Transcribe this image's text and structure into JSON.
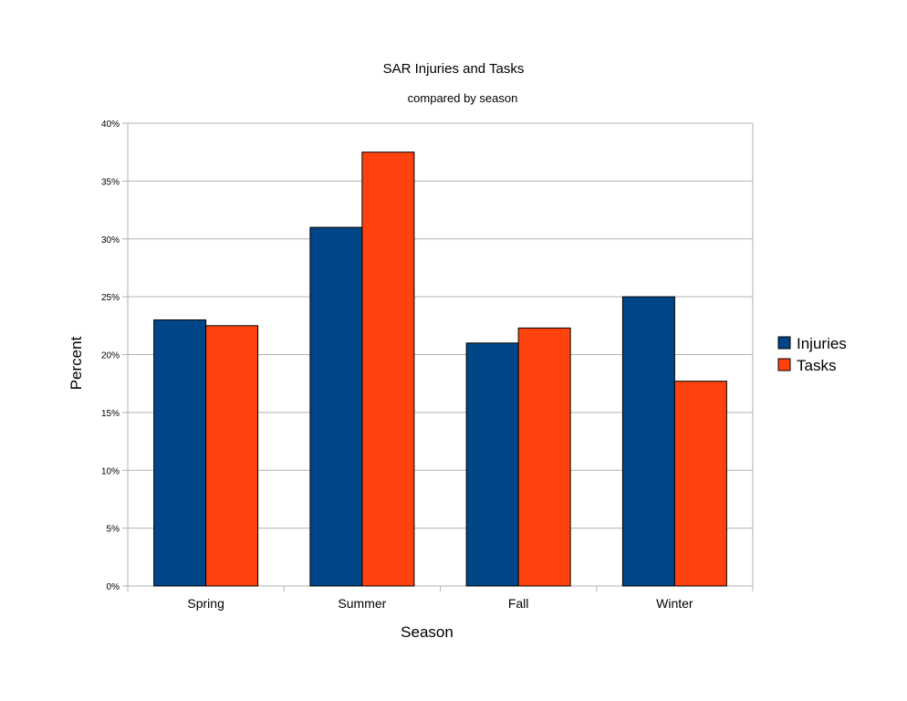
{
  "chart_data": {
    "type": "bar",
    "title": "SAR Injuries and Tasks",
    "subtitle": "compared by season",
    "xlabel": "Season",
    "ylabel": "Percent",
    "categories": [
      "Spring",
      "Summer",
      "Fall",
      "Winter"
    ],
    "series": [
      {
        "name": "Injuries",
        "color": "#004586",
        "values": [
          23,
          31,
          21,
          25
        ]
      },
      {
        "name": "Tasks",
        "color": "#ff420e",
        "values": [
          22.5,
          37.5,
          22.3,
          17.7
        ]
      }
    ],
    "ylim": [
      0,
      40
    ],
    "yticks": [
      0,
      5,
      10,
      15,
      20,
      25,
      30,
      35,
      40
    ],
    "ytick_labels": [
      "0%",
      "5%",
      "10%",
      "15%",
      "20%",
      "25%",
      "30%",
      "35%",
      "40%"
    ],
    "grid": true,
    "legend_position": "right"
  }
}
